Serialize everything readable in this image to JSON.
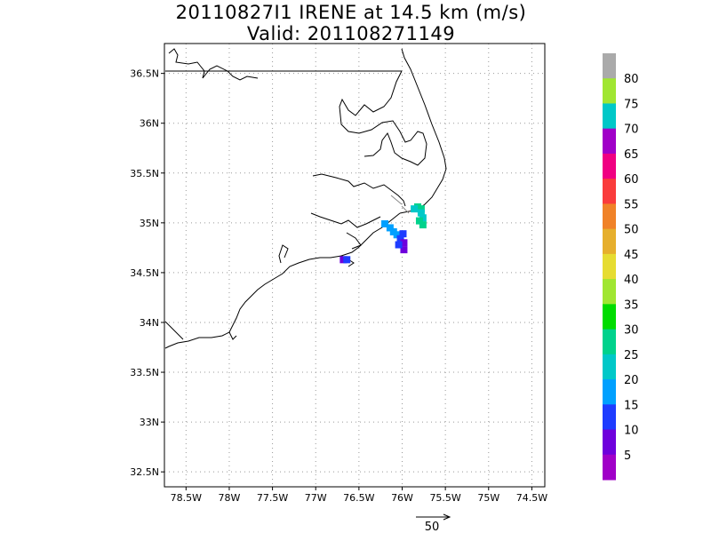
{
  "title_line1": "20110827I1 IRENE at 14.5 km (m/s)",
  "title_line2": "Valid: 201108271149",
  "map": {
    "lon_range": [
      -78.75,
      -74.35
    ],
    "lat_range": [
      32.35,
      36.8
    ],
    "x_ticks": [
      "78.5W",
      "78W",
      "77.5W",
      "77W",
      "76.5W",
      "76W",
      "75.5W",
      "75W",
      "74.5W"
    ],
    "x_tick_values": [
      -78.5,
      -78.0,
      -77.5,
      -77.0,
      -76.5,
      -76.0,
      -75.5,
      -75.0,
      -74.5
    ],
    "y_ticks": [
      "36.5N",
      "36N",
      "35.5N",
      "35N",
      "34.5N",
      "34N",
      "33.5N",
      "33N",
      "32.5N"
    ],
    "y_tick_values": [
      36.5,
      36.0,
      35.5,
      35.0,
      34.5,
      34.0,
      33.5,
      33.0,
      32.5
    ],
    "grid": "dotted",
    "coastline_color": "#000000"
  },
  "colorbar": {
    "labels": [
      "5",
      "10",
      "15",
      "20",
      "25",
      "30",
      "35",
      "40",
      "45",
      "50",
      "55",
      "60",
      "65",
      "70",
      "75",
      "80"
    ],
    "colors": [
      "#a000c8",
      "#6e00dc",
      "#1e3cff",
      "#00a0ff",
      "#00c8c8",
      "#00d28c",
      "#00dc00",
      "#a0e632",
      "#e6dc32",
      "#e6af2d",
      "#f08228",
      "#fa3c3c",
      "#f00082",
      "#a000c8",
      "#00c8c8",
      "#a0e632",
      "#aaaaaa"
    ]
  },
  "wind_cells": [
    {
      "lon": -75.82,
      "lat": 35.16,
      "color": "#00d28c"
    },
    {
      "lon": -75.78,
      "lat": 35.14,
      "color": "#00d28c"
    },
    {
      "lon": -75.78,
      "lat": 35.1,
      "color": "#00c8c8"
    },
    {
      "lon": -75.76,
      "lat": 35.05,
      "color": "#00c8c8"
    },
    {
      "lon": -75.8,
      "lat": 35.02,
      "color": "#00d28c"
    },
    {
      "lon": -75.76,
      "lat": 34.98,
      "color": "#00d28c"
    },
    {
      "lon": -75.86,
      "lat": 35.14,
      "color": "#00c8c8"
    },
    {
      "lon": -76.2,
      "lat": 34.99,
      "color": "#00a0ff"
    },
    {
      "lon": -76.14,
      "lat": 34.95,
      "color": "#00a0ff"
    },
    {
      "lon": -76.1,
      "lat": 34.91,
      "color": "#00a0ff"
    },
    {
      "lon": -76.06,
      "lat": 34.88,
      "color": "#00a0ff"
    },
    {
      "lon": -76.02,
      "lat": 34.84,
      "color": "#1e3cff"
    },
    {
      "lon": -75.99,
      "lat": 34.89,
      "color": "#1e3cff"
    },
    {
      "lon": -75.98,
      "lat": 34.8,
      "color": "#6e00dc"
    },
    {
      "lon": -75.98,
      "lat": 34.73,
      "color": "#6e00dc"
    },
    {
      "lon": -76.04,
      "lat": 34.78,
      "color": "#1e3cff"
    },
    {
      "lon": -76.68,
      "lat": 34.63,
      "color": "#6e00dc"
    },
    {
      "lon": -76.64,
      "lat": 34.63,
      "color": "#1e3cff"
    }
  ],
  "reference_vector": {
    "label": "50"
  }
}
